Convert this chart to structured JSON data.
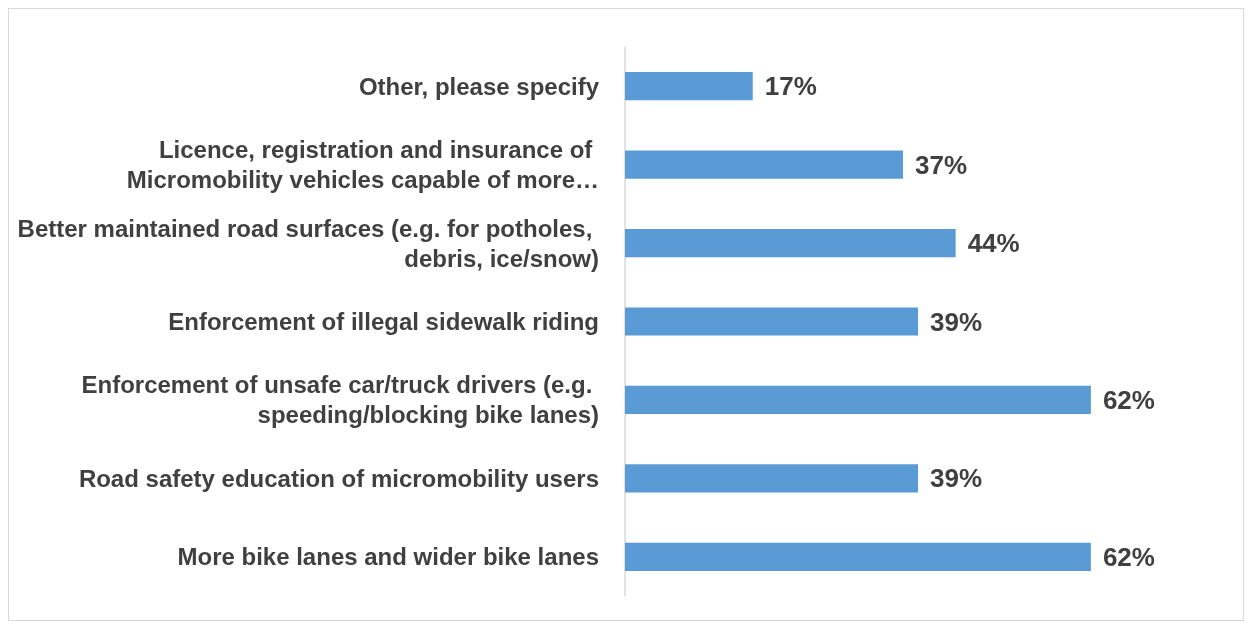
{
  "chart_data": {
    "type": "bar",
    "orientation": "horizontal",
    "categories": [
      "Other, please specify",
      "Licence, registration and insurance of Micromobility vehicles capable of more…",
      "Better maintained road surfaces (e.g. for potholes, debris, ice/snow)",
      "Enforcement of illegal sidewalk riding",
      "Enforcement of unsafe car/truck drivers (e.g. speeding/blocking bike lanes)",
      "Road safety education of micromobility users",
      "More bike lanes and wider bike lanes"
    ],
    "values": [
      17,
      37,
      44,
      39,
      62,
      39,
      62
    ],
    "value_labels": [
      "17%",
      "37%",
      "44%",
      "39%",
      "62%",
      "39%",
      "62%"
    ],
    "color": "#5b9bd5"
  }
}
